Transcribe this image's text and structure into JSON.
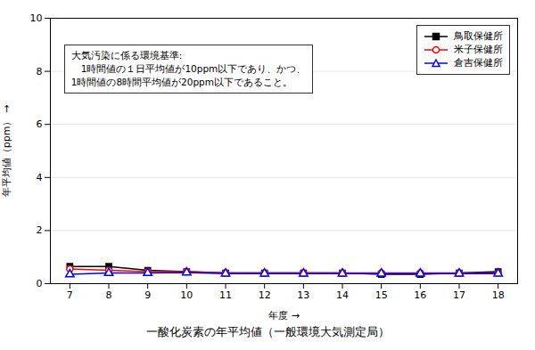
{
  "chart_data": {
    "type": "line",
    "title": "一酸化炭素の年平均値（一般環境大気測定局）",
    "xlabel": "年度",
    "ylabel": "年平均値（ppm）",
    "x": [
      7,
      8,
      9,
      10,
      11,
      12,
      13,
      14,
      15,
      16,
      17,
      18
    ],
    "xlim": [
      6.5,
      18.5
    ],
    "xticks": [
      7,
      8,
      9,
      10,
      11,
      12,
      13,
      14,
      15,
      16,
      17,
      18
    ],
    "ylim": [
      0,
      10
    ],
    "yticks": [
      0,
      2,
      4,
      6,
      8,
      10
    ],
    "grid": "y",
    "legend": "upper right",
    "annotations": [
      "大気汚染に係る環境基準:",
      "　1時間値の１日平均値が10ppm以下であり、かつ、",
      "1時間値の8時間平均値が20ppm以下であること。"
    ],
    "series": [
      {
        "name": "鳥取保健所",
        "color": "#000000",
        "marker": "square",
        "values": [
          0.65,
          0.65,
          0.5,
          0.45,
          0.4,
          0.4,
          0.4,
          0.4,
          0.35,
          0.35,
          0.4,
          0.45
        ]
      },
      {
        "name": "米子保健所",
        "color": "#ff0000",
        "marker": "open_circle",
        "values": [
          0.55,
          0.5,
          0.45,
          0.45,
          0.4,
          0.4,
          0.4,
          0.4,
          0.4,
          0.4,
          0.4,
          0.4
        ]
      },
      {
        "name": "倉吉保健所",
        "color": "#0000ff",
        "marker": "open_triangle",
        "values": [
          0.35,
          0.4,
          0.4,
          0.42,
          0.38,
          0.38,
          0.38,
          0.38,
          0.38,
          0.38,
          0.38,
          0.38
        ]
      }
    ]
  }
}
